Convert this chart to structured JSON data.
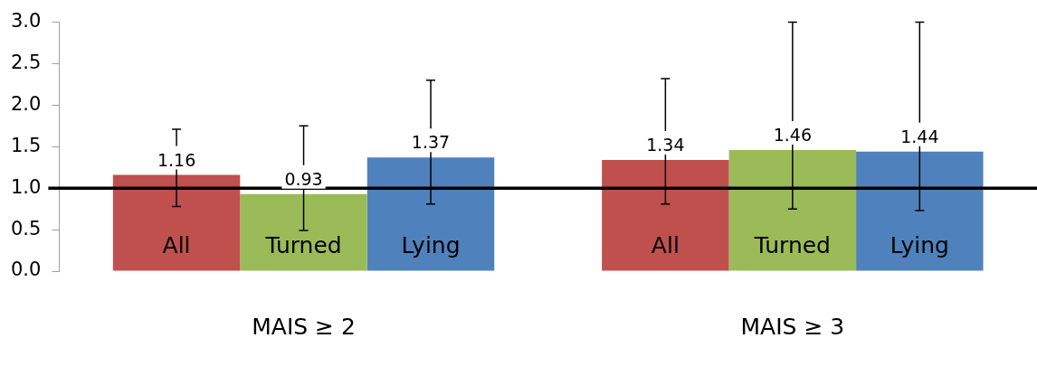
{
  "chart_data": {
    "type": "bar",
    "categories": [
      "MAIS ≥ 2",
      "MAIS ≥ 3"
    ],
    "series": [
      {
        "name": "All",
        "color": "#c0504d",
        "values": [
          1.16,
          1.34
        ],
        "errors": [
          [
            0.78,
            1.71
          ],
          [
            0.81,
            2.32
          ]
        ]
      },
      {
        "name": "Turned",
        "color": "#9bbb59",
        "values": [
          0.93,
          1.46
        ],
        "errors": [
          [
            0.49,
            1.75
          ],
          [
            0.75,
            3.0
          ]
        ]
      },
      {
        "name": "Lying",
        "color": "#4f81bd",
        "values": [
          1.37,
          1.44
        ],
        "errors": [
          [
            0.81,
            2.3
          ],
          [
            0.73,
            3.0
          ]
        ]
      }
    ],
    "ylim": [
      0,
      3
    ],
    "yticks": [
      {
        "value": 0,
        "label": "0.0"
      },
      {
        "value": 0.5,
        "label": "0.5"
      },
      {
        "value": 1,
        "label": "1.0"
      },
      {
        "value": 1.5,
        "label": "1.5"
      },
      {
        "value": 2,
        "label": "2.0"
      },
      {
        "value": 2.5,
        "label": "2.5"
      },
      {
        "value": 3,
        "label": "3.0"
      }
    ],
    "ref_lines": [
      {
        "axis": "y",
        "value": 1,
        "color": "#000000"
      }
    ],
    "data_labels": true,
    "grid": false,
    "legend": false
  }
}
